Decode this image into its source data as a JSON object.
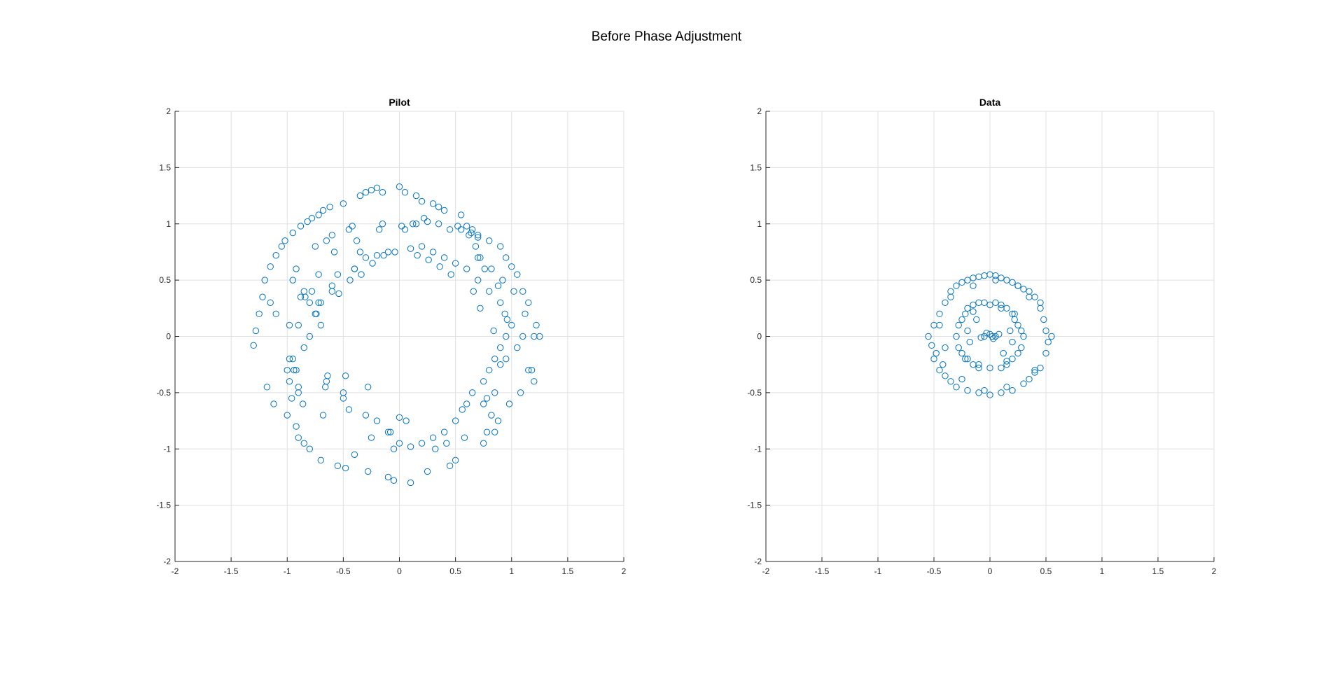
{
  "figure": {
    "title": "Before Phase Adjustment"
  },
  "colors": {
    "marker": "#0072BD",
    "grid": "#e0e0e0",
    "axis": "#262626",
    "background": "#ffffff"
  },
  "chart_data": [
    {
      "type": "scatter",
      "title": "Pilot",
      "xlabel": "",
      "ylabel": "",
      "xlim": [
        -2,
        2
      ],
      "ylim": [
        -2,
        2
      ],
      "xticks": [
        "-2",
        "-1.5",
        "-1",
        "-0.5",
        "0",
        "0.5",
        "1",
        "1.5",
        "2"
      ],
      "yticks": [
        "2",
        "1.5",
        "1",
        "0.5",
        "0",
        "-0.5",
        "-1",
        "-1.5",
        "-2"
      ],
      "grid": true,
      "marker": "circle-open",
      "series": [
        {
          "points_description": "open circles in a noisy ring, radius ~0.7-1.3, centered near origin",
          "x": [
            -1.3,
            -1.28,
            -1.25,
            -1.22,
            -1.2,
            -1.18,
            -1.15,
            -1.12,
            -1.1,
            -1.05,
            -1.02,
            -1.0,
            -0.98,
            -0.95,
            -0.92,
            -0.9,
            -0.88,
            -0.85,
            -0.82,
            -0.8,
            -0.78,
            -0.75,
            -0.72,
            -0.7,
            -0.68,
            -0.65,
            -0.62,
            -0.6,
            -0.55,
            -0.5,
            -0.48,
            -0.45,
            -0.42,
            -0.4,
            -0.35,
            -0.3,
            -0.28,
            -0.25,
            -0.2,
            -0.15,
            -0.1,
            -0.05,
            0.0,
            0.05,
            0.1,
            0.15,
            0.2,
            0.25,
            0.3,
            0.35,
            0.4,
            0.45,
            0.5,
            0.55,
            0.6,
            0.65,
            0.7,
            0.75,
            0.8,
            0.85,
            0.9,
            0.95,
            1.0,
            1.05,
            1.1,
            1.15,
            1.2,
            1.22,
            1.25,
            -1.15,
            -1.1,
            -1.0,
            -0.95,
            -0.9,
            -0.85,
            -0.8,
            -0.7,
            -0.65,
            -0.6,
            -0.5,
            -0.4,
            -0.3,
            -0.2,
            -0.1,
            0.0,
            0.1,
            0.2,
            0.3,
            0.4,
            0.5,
            0.6,
            0.7,
            0.75,
            0.8,
            0.85,
            0.9,
            0.95,
            1.0,
            1.05,
            1.1,
            1.15,
            -0.95,
            -0.9,
            -0.85,
            -0.8,
            -0.75,
            -0.7,
            -0.6,
            -0.5,
            -0.4,
            -0.3,
            -0.2,
            -0.1,
            0.0,
            0.1,
            0.2,
            0.3,
            0.4,
            0.5,
            0.6,
            0.65,
            0.7,
            0.75,
            0.8,
            0.85,
            0.9,
            0.95,
            -0.98,
            -0.92,
            -0.88,
            -0.72,
            -0.68,
            -0.55,
            -0.45,
            -0.35,
            -0.25,
            -0.15,
            -0.05,
            0.05,
            0.15,
            0.25,
            0.35,
            0.45,
            0.55,
            0.62,
            0.68,
            0.72,
            0.78,
            0.82,
            0.88,
            0.92,
            0.98,
            1.02,
            1.08,
            1.12,
            1.18,
            1.2,
            -0.98,
            -0.92,
            -0.86,
            -0.78,
            -0.72,
            -0.66,
            -0.58,
            -0.48,
            -0.38,
            -0.28,
            -0.18,
            -0.08,
            0.02,
            0.12,
            0.22,
            0.32,
            0.42,
            0.52,
            0.58,
            0.64,
            0.7,
            0.76,
            0.82,
            0.88,
            0.94,
            -0.96,
            -0.94,
            -0.9,
            -0.84,
            -0.74,
            -0.64,
            -0.54,
            -0.44,
            -0.34,
            -0.24,
            -0.14,
            -0.04,
            0.06,
            0.16,
            0.26,
            0.36,
            0.46,
            0.56,
            0.66,
            0.72,
            0.78,
            0.84,
            0.9,
            0.96
          ],
          "y": [
            -0.08,
            0.05,
            0.2,
            0.35,
            0.5,
            -0.45,
            0.62,
            -0.6,
            0.72,
            0.8,
            0.85,
            -0.7,
            -0.4,
            0.92,
            -0.8,
            -0.9,
            0.98,
            -0.95,
            1.02,
            -1.0,
            1.05,
            0.8,
            1.08,
            -1.1,
            1.12,
            0.85,
            1.15,
            0.9,
            -1.15,
            1.18,
            -1.17,
            0.95,
            0.98,
            -1.05,
            1.25,
            1.28,
            -1.2,
            1.3,
            1.32,
            1.28,
            -1.25,
            -1.28,
            1.33,
            1.28,
            -1.3,
            1.25,
            1.2,
            -1.2,
            1.18,
            1.15,
            1.12,
            -1.15,
            -1.1,
            1.08,
            0.98,
            0.95,
            0.9,
            -0.95,
            0.85,
            -0.85,
            0.8,
            0.7,
            0.62,
            0.55,
            0.4,
            0.3,
            -0.4,
            0.1,
            0.0,
            0.3,
            0.2,
            -0.3,
            -0.2,
            0.1,
            -0.1,
            0.0,
            0.3,
            -0.4,
            0.4,
            -0.5,
            0.6,
            0.7,
            0.72,
            0.75,
            -0.72,
            0.78,
            0.8,
            0.75,
            0.7,
            0.65,
            0.6,
            0.5,
            -0.6,
            0.4,
            -0.5,
            0.3,
            -0.2,
            0.1,
            -0.1,
            0.0,
            -0.3,
            0.5,
            -0.5,
            0.4,
            0.3,
            0.2,
            0.1,
            0.45,
            -0.55,
            0.6,
            -0.7,
            -0.75,
            -0.85,
            -0.95,
            -0.98,
            -0.95,
            -0.9,
            -0.85,
            -0.75,
            -0.6,
            -0.5,
            0.7,
            -0.4,
            -0.3,
            -0.2,
            -0.1,
            0.0,
            0.1,
            -0.3,
            0.35,
            0.55,
            -0.7,
            0.55,
            -0.65,
            0.75,
            -0.9,
            1.0,
            -1.0,
            0.95,
            1.0,
            1.02,
            1.0,
            0.95,
            0.95,
            0.9,
            0.8,
            0.7,
            -0.85,
            0.6,
            -0.75,
            0.5,
            -0.6,
            0.4,
            -0.5,
            0.2,
            -0.3,
            0.0,
            -0.2,
            0.6,
            -0.6,
            0.4,
            0.3,
            -0.45,
            0.75,
            -0.35,
            0.85,
            -0.45,
            0.95,
            -0.85,
            0.98,
            1.0,
            1.05,
            -1.0,
            -0.95,
            0.98,
            -0.9,
            0.92,
            0.88,
            0.6,
            -0.7,
            0.45,
            0.2,
            -0.55,
            -0.3,
            -0.45,
            0.35,
            0.2,
            -0.35,
            0.38,
            0.5,
            0.55,
            0.65,
            0.72,
            0.75,
            -0.75,
            0.72,
            0.68,
            0.62,
            0.55,
            -0.65,
            0.4,
            0.25,
            -0.55,
            0.05,
            -0.25,
            0.15
          ]
        }
      ]
    },
    {
      "type": "scatter",
      "title": "Data",
      "xlabel": "",
      "ylabel": "",
      "xlim": [
        -2,
        2
      ],
      "ylim": [
        -2,
        2
      ],
      "xticks": [
        "-2",
        "-1.5",
        "-1",
        "-0.5",
        "0",
        "0.5",
        "1",
        "1.5",
        "2"
      ],
      "yticks": [
        "2",
        "1.5",
        "1",
        "0.5",
        "0",
        "-0.5",
        "-1",
        "-1.5",
        "-2"
      ],
      "grid": true,
      "marker": "circle-open",
      "series": [
        {
          "points_description": "open circles in concentric noisy rings of radius ~0.1-0.55 centered at origin",
          "x": [
            -0.55,
            -0.52,
            -0.5,
            -0.48,
            -0.45,
            -0.42,
            -0.4,
            -0.35,
            -0.3,
            -0.25,
            -0.2,
            -0.15,
            -0.1,
            -0.05,
            0.0,
            0.05,
            0.1,
            0.15,
            0.2,
            0.25,
            0.3,
            0.35,
            0.4,
            0.45,
            0.48,
            0.5,
            0.52,
            0.55,
            -0.5,
            -0.45,
            -0.4,
            -0.35,
            -0.3,
            -0.2,
            -0.1,
            0.0,
            0.1,
            0.2,
            0.3,
            0.35,
            0.4,
            0.45,
            0.5,
            -0.3,
            -0.28,
            -0.25,
            -0.22,
            -0.2,
            -0.15,
            -0.1,
            -0.05,
            0.0,
            0.05,
            0.1,
            0.15,
            0.2,
            0.22,
            0.25,
            0.28,
            0.3,
            -0.28,
            -0.25,
            -0.2,
            -0.15,
            -0.1,
            0.0,
            0.1,
            0.15,
            0.2,
            0.25,
            0.28,
            -0.05,
            0.0,
            0.03,
            0.05,
            -0.03,
            0.08,
            -0.08,
            0.02,
            -0.45,
            -0.4,
            -0.35,
            -0.25,
            -0.15,
            -0.05,
            0.05,
            0.15,
            0.25,
            0.35,
            0.4,
            0.45,
            -0.2,
            -0.18,
            -0.12,
            0.12,
            0.18,
            0.2,
            -0.22,
            0.22,
            -0.15,
            0.15,
            -0.1,
            0.1
          ],
          "y": [
            0.0,
            -0.08,
            0.1,
            -0.15,
            0.2,
            -0.25,
            0.3,
            0.4,
            0.45,
            0.48,
            0.5,
            0.52,
            0.53,
            0.54,
            0.55,
            0.54,
            0.52,
            0.5,
            0.48,
            0.45,
            0.42,
            0.4,
            0.35,
            0.25,
            0.15,
            0.05,
            -0.05,
            0.0,
            -0.2,
            -0.3,
            -0.35,
            -0.4,
            -0.45,
            -0.48,
            -0.5,
            -0.52,
            -0.5,
            -0.48,
            -0.42,
            -0.38,
            -0.32,
            -0.28,
            -0.15,
            0.0,
            0.1,
            0.15,
            0.2,
            0.25,
            0.28,
            0.3,
            0.3,
            0.28,
            0.3,
            0.28,
            0.25,
            0.2,
            0.15,
            0.1,
            0.05,
            0.0,
            -0.1,
            -0.15,
            -0.2,
            -0.25,
            -0.28,
            -0.28,
            -0.28,
            -0.25,
            -0.2,
            -0.15,
            -0.1,
            0.0,
            0.02,
            -0.02,
            0.0,
            0.03,
            0.02,
            -0.01,
            0.0,
            0.1,
            -0.1,
            0.35,
            -0.38,
            0.45,
            -0.48,
            0.5,
            -0.45,
            0.45,
            0.35,
            -0.3,
            0.3,
            0.05,
            -0.05,
            0.15,
            -0.15,
            0.05,
            -0.05,
            -0.2,
            0.2,
            0.22,
            -0.22,
            -0.25,
            0.25
          ]
        }
      ]
    }
  ]
}
